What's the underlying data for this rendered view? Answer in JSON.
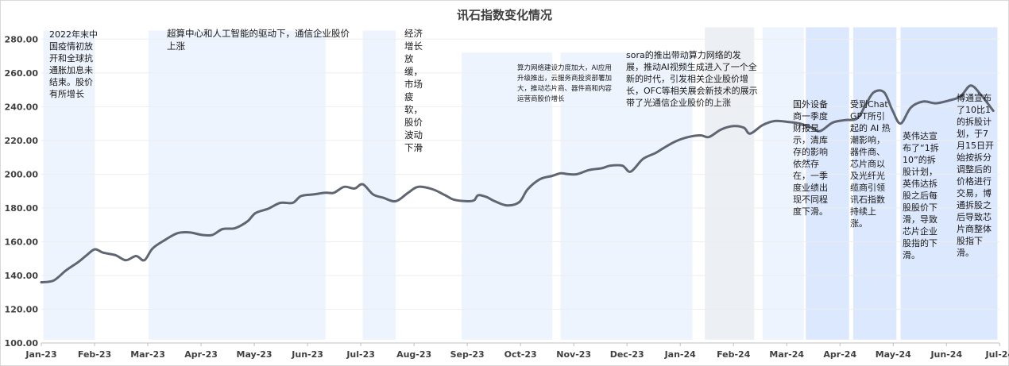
{
  "chart_data": {
    "type": "line",
    "title": "讯石指数变化情况",
    "xlabel": "",
    "ylabel": "",
    "ylim": [
      100,
      290
    ],
    "yticks": [
      "100.00",
      "120.00",
      "140.00",
      "160.00",
      "180.00",
      "200.00",
      "220.00",
      "240.00",
      "260.00",
      "280.00"
    ],
    "months": [
      "Jan-23",
      "Feb-23",
      "Mar-23",
      "Apr-23",
      "May-23",
      "Jun-23",
      "Jul-23",
      "Aug-23",
      "Sep-23",
      "Oct-23",
      "Nov-23",
      "Dec-23",
      "Jan-24",
      "Feb-24",
      "Mar-24",
      "Apr-24",
      "May-24",
      "Jun-24",
      "Jul-24"
    ],
    "series": [
      {
        "color": "#5f6571",
        "points": [
          [
            0,
            136
          ],
          [
            0.3,
            137
          ],
          [
            0.6,
            143
          ],
          [
            0.9,
            148
          ],
          [
            1.1,
            152
          ],
          [
            1.3,
            155.5
          ],
          [
            1.5,
            153.5
          ],
          [
            1.8,
            152
          ],
          [
            2.05,
            149
          ],
          [
            2.3,
            151.5
          ],
          [
            2.5,
            149
          ],
          [
            2.7,
            156
          ],
          [
            3.0,
            161
          ],
          [
            3.3,
            165
          ],
          [
            3.6,
            165.5
          ],
          [
            3.9,
            164
          ],
          [
            4.15,
            164
          ],
          [
            4.4,
            167.5
          ],
          [
            4.7,
            168
          ],
          [
            5.0,
            172
          ],
          [
            5.2,
            177
          ],
          [
            5.5,
            179.5
          ],
          [
            5.8,
            183
          ],
          [
            6.1,
            183
          ],
          [
            6.3,
            187
          ],
          [
            6.6,
            188
          ],
          [
            6.9,
            189
          ],
          [
            7.1,
            189
          ],
          [
            7.35,
            192.5
          ],
          [
            7.6,
            191.5
          ],
          [
            7.8,
            194
          ],
          [
            8.05,
            188
          ],
          [
            8.3,
            186
          ],
          [
            8.6,
            184
          ],
          [
            8.9,
            189
          ],
          [
            9.15,
            192.5
          ],
          [
            9.5,
            191
          ],
          [
            9.8,
            187.5
          ],
          [
            10.0,
            185
          ],
          [
            10.3,
            184
          ],
          [
            10.5,
            184.5
          ],
          [
            10.6,
            187.5
          ],
          [
            10.8,
            186.5
          ],
          [
            11.0,
            184
          ],
          [
            11.3,
            181.5
          ],
          [
            11.6,
            183.5
          ],
          [
            11.8,
            191
          ],
          [
            12.1,
            197
          ],
          [
            12.4,
            199
          ],
          [
            12.6,
            200.5
          ],
          [
            12.8,
            200
          ],
          [
            13.0,
            200
          ],
          [
            13.3,
            202.5
          ],
          [
            13.6,
            203.5
          ],
          [
            13.8,
            205
          ],
          [
            14.1,
            205
          ],
          [
            14.3,
            201.5
          ],
          [
            14.6,
            209
          ],
          [
            14.9,
            212.5
          ],
          [
            15.1,
            215.5
          ],
          [
            15.4,
            219.5
          ],
          [
            15.7,
            222
          ],
          [
            16.0,
            223
          ],
          [
            16.2,
            222
          ],
          [
            16.5,
            226.5
          ],
          [
            16.8,
            228.5
          ],
          [
            17.05,
            227.5
          ],
          [
            17.2,
            224
          ],
          [
            17.5,
            229
          ],
          [
            17.8,
            231.5
          ],
          [
            18.1,
            231
          ],
          [
            18.4,
            230
          ],
          [
            18.7,
            227.5
          ],
          [
            18.9,
            225.5
          ],
          [
            19.2,
            230.5
          ],
          [
            19.5,
            232
          ],
          [
            19.8,
            233
          ],
          [
            20.0,
            241
          ],
          [
            20.2,
            248.5
          ],
          [
            20.45,
            248.5
          ],
          [
            20.65,
            238
          ],
          [
            20.85,
            230
          ],
          [
            21.1,
            239.5
          ],
          [
            21.4,
            243
          ],
          [
            21.7,
            242
          ],
          [
            22.0,
            243.5
          ],
          [
            22.3,
            246
          ],
          [
            22.55,
            252.5
          ],
          [
            22.8,
            247
          ],
          [
            23.1,
            237.5
          ]
        ]
      }
    ],
    "bands": [
      {
        "x0": 0.05,
        "x1": 1.3,
        "y_top": 285,
        "color": "#eef4fe"
      },
      {
        "x0": 2.6,
        "x1": 6.9,
        "y_top": 285,
        "color": "#eef4fe"
      },
      {
        "x0": 7.8,
        "x1": 8.6,
        "y_top": 285,
        "color": "#eef4fe"
      },
      {
        "x0": 10.2,
        "x1": 12.4,
        "y_top": 272,
        "color": "#eef4fe"
      },
      {
        "x0": 12.6,
        "x1": 15.8,
        "y_top": 272,
        "color": "#eef4fe"
      },
      {
        "x0": 16.1,
        "x1": 17.3,
        "y_top": 287,
        "color": "#ecf0f5"
      },
      {
        "x0": 17.5,
        "x1": 18.5,
        "y_top": 287,
        "color": "#eef4fe"
      },
      {
        "x0": 18.55,
        "x1": 19.6,
        "y_top": 287,
        "color": "#dce8fd"
      },
      {
        "x0": 19.7,
        "x1": 20.75,
        "y_top": 287,
        "color": "#dce8fd"
      },
      {
        "x0": 20.85,
        "x1": 23.2,
        "y_top": 287,
        "color": "#dce8fd"
      }
    ],
    "annotations": [
      "2022年末中国疫情初放开和全球抗通胀加息未结束。股价有所增长",
      "超算中心和人工智能的驱动下，通信企业股价上涨",
      "经济增长放缓，市场疲软，股价波动下滑",
      "算力网络建设力度加大，AI应用升级推出，云服务商投资部署加大，推动芯片商、器件商和内容运营商股价增长",
      "sora的推出带动算力网络的发展，推动AI视频生成进入了一个全新的时代，引发相关企业股价增长，OFC等相关展会新技术的展示带了光通信企业股价的上涨",
      "国外设备商一季度财报显示，清库存的影响依然存在，一季度业绩出现不同程度下滑。",
      "受到ChatGPT所引起的 AI 热潮影响，器件商、芯片商以及光纤光缆商引领讯石指数持续上涨。",
      "英伟达宣布了“1拆10”的拆股计划，英伟达拆股之后每股股价下滑，导致芯片企业股指的下滑。",
      "博通宣布了10比1的拆股计划，于7月15日开始按拆分调整后的价格进行交易，博通拆股之后导致芯片商整体股指下滑。"
    ]
  }
}
